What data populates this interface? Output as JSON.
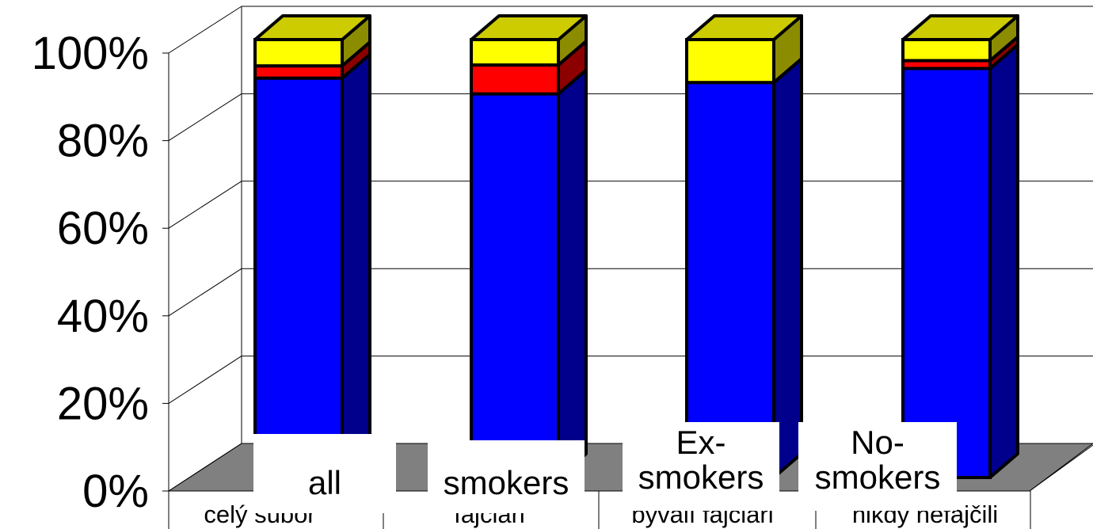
{
  "chart_data": {
    "type": "bar",
    "stacked": true,
    "three_d": true,
    "categories": [
      "celý súbor",
      "fajčiari",
      "bývalí fajčiari",
      "nikdy nefajčili"
    ],
    "overlay_labels": [
      [
        "all"
      ],
      [
        "smokers"
      ],
      [
        "Ex-",
        "smokers"
      ],
      [
        "No-",
        "smokers"
      ]
    ],
    "series": [
      {
        "color": "#0000ff",
        "values": [
          91.2,
          87.6,
          90.2,
          93.4
        ]
      },
      {
        "color": "#ff0000",
        "values": [
          2.8,
          6.6,
          0.0,
          1.8
        ]
      },
      {
        "color": "#ffff00",
        "values": [
          6.0,
          5.8,
          9.8,
          4.8
        ]
      }
    ],
    "ylim": [
      0,
      100
    ],
    "yticks": [
      "0%",
      "20%",
      "40%",
      "60%",
      "80%",
      "100%"
    ],
    "grid": true
  }
}
